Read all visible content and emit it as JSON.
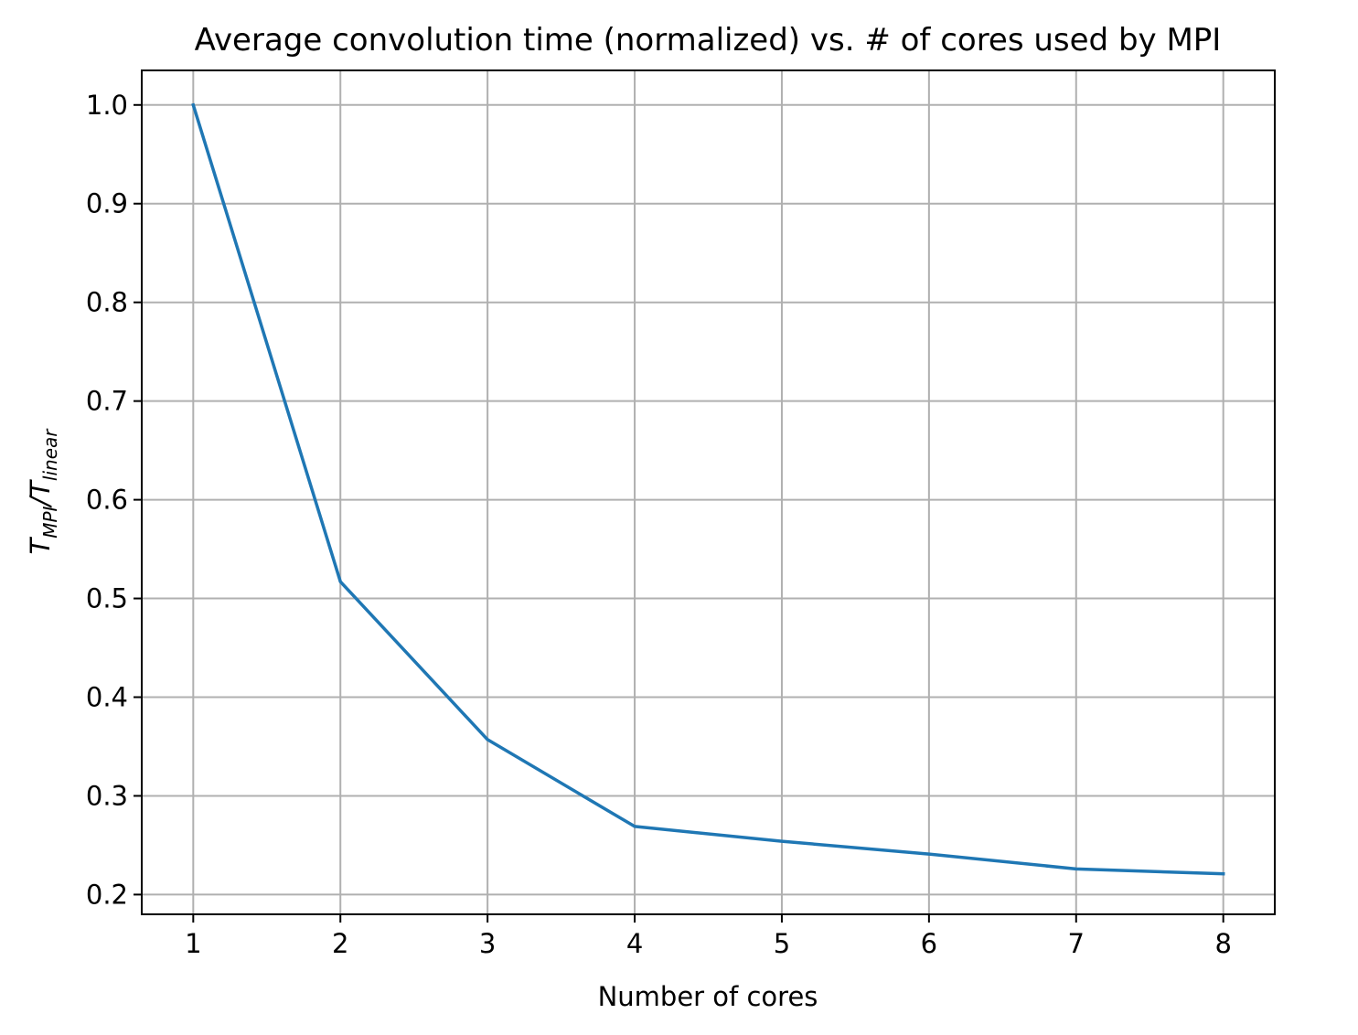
{
  "chart_data": {
    "type": "line",
    "title": "Average convolution time (normalized) vs. # of cores used by MPI",
    "xlabel": "Number of cores",
    "ylabel": {
      "main": "T",
      "sub1": "MPI",
      "sep": "/T",
      "sub2": "linear"
    },
    "x": [
      1,
      2,
      3,
      4,
      5,
      6,
      7,
      8
    ],
    "series": [
      {
        "values": [
          1.0,
          0.517,
          0.357,
          0.269,
          0.254,
          0.241,
          0.226,
          0.221
        ],
        "color": "#1f77b4"
      }
    ],
    "xlim": [
      0.65,
      8.35
    ],
    "ylim": [
      0.18,
      1.035
    ],
    "x_ticks": [
      "1",
      "2",
      "3",
      "4",
      "5",
      "6",
      "7",
      "8"
    ],
    "y_ticks": [
      "0.2",
      "0.3",
      "0.4",
      "0.5",
      "0.6",
      "0.7",
      "0.8",
      "0.9",
      "1.0"
    ],
    "grid": true,
    "grid_color": "#b0b0b0"
  }
}
